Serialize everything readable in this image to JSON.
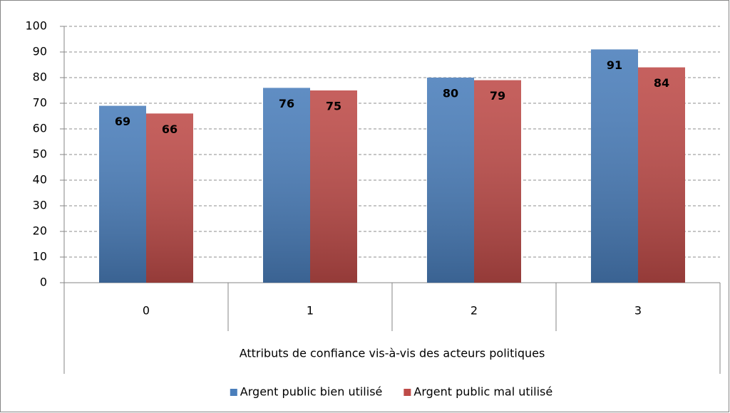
{
  "chart_data": {
    "type": "bar",
    "x_label": "Attributs de confiance vis-à-vis des acteurs politiques",
    "categories": [
      "0",
      "1",
      "2",
      "3"
    ],
    "series": [
      {
        "name": "Argent public bien utilisé",
        "color": "#4a7ebb",
        "values": [
          69,
          76,
          80,
          91
        ]
      },
      {
        "name": "Argent public mal utilisé",
        "color": "#be4b48",
        "values": [
          66,
          75,
          79,
          84
        ]
      }
    ],
    "ylim": [
      0,
      100
    ],
    "yticks": [
      0,
      10,
      20,
      30,
      40,
      50,
      60,
      70,
      80,
      90,
      100
    ],
    "grid": true,
    "legend": "bottom"
  }
}
